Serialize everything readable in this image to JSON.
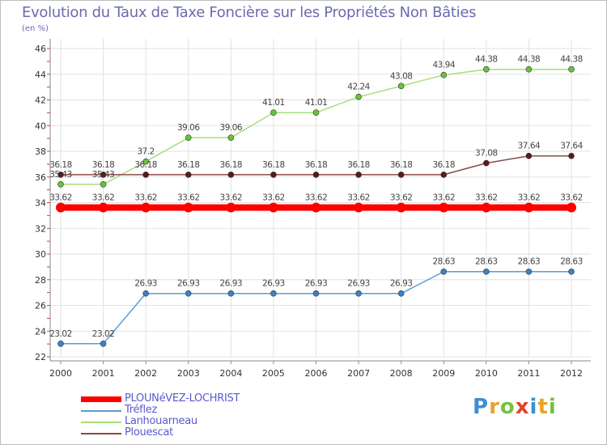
{
  "title": "Evolution du Taux de Taxe Foncière sur les Propriétés Non Bâties",
  "subtitle": "(en %)",
  "brand": {
    "letters": [
      "P",
      "r",
      "o",
      "x",
      "i",
      "t",
      "i"
    ],
    "colors": [
      "#3a8fd6",
      "#e8a32a",
      "#77c043",
      "#e0442e",
      "#3a8fd6",
      "#e8a32a",
      "#77c043"
    ]
  },
  "chart_data": {
    "type": "line",
    "title": "Evolution du Taux de Taxe Foncière sur les Propriétés Non Bâties",
    "ylabel": "(en %)",
    "xlabel": "",
    "x": [
      "2000",
      "2001",
      "2002",
      "2003",
      "2004",
      "2005",
      "2006",
      "2007",
      "2008",
      "2009",
      "2010",
      "2011",
      "2012"
    ],
    "ylim": [
      22,
      46
    ],
    "yticks": [
      22,
      24,
      26,
      28,
      30,
      32,
      34,
      36,
      38,
      40,
      42,
      44,
      46
    ],
    "grid": true,
    "series": [
      {
        "name": "PLOUNéVEZ-LOCHRIST",
        "color": "#ff0000",
        "point_color": "#ff0000",
        "values": [
          33.62,
          33.62,
          33.62,
          33.62,
          33.62,
          33.62,
          33.62,
          33.62,
          33.62,
          33.62,
          33.62,
          33.62,
          33.62
        ],
        "labels": [
          "33.62",
          "33.62",
          "33.62",
          "33.62",
          "33.62",
          "33.62",
          "33.62",
          "33.62",
          "33.62",
          "33.62",
          "33.62",
          "33.62",
          "33.62"
        ]
      },
      {
        "name": "Tréflez",
        "color": "#5b9bd5",
        "point_color": "#3b82c4",
        "values": [
          23.02,
          23.02,
          26.93,
          26.93,
          26.93,
          26.93,
          26.93,
          26.93,
          26.93,
          28.63,
          28.63,
          28.63,
          28.63
        ],
        "labels": [
          "23.02",
          "23.02",
          "26.93",
          "26.93",
          "26.93",
          "26.93",
          "26.93",
          "26.93",
          "26.93",
          "28.63",
          "28.63",
          "28.63",
          "28.63"
        ]
      },
      {
        "name": "Lanhouarneau",
        "color": "#a6e07a",
        "point_color": "#66c43a",
        "values": [
          35.43,
          35.43,
          37.2,
          39.06,
          39.06,
          41.01,
          41.01,
          42.24,
          43.08,
          43.94,
          44.38,
          44.38,
          44.38
        ],
        "labels": [
          "35.43",
          "35.43",
          "37.2",
          "39.06",
          "39.06",
          "41.01",
          "41.01",
          "42.24",
          "43.08",
          "43.94",
          "44.38",
          "44.38",
          "44.38"
        ]
      },
      {
        "name": "Plouescat",
        "color": "#8b4a4a",
        "point_color": "#5a1a1a",
        "values": [
          36.18,
          36.18,
          36.18,
          36.18,
          36.18,
          36.18,
          36.18,
          36.18,
          36.18,
          36.18,
          37.08,
          37.64,
          37.64
        ],
        "labels": [
          "36.18",
          "36.18",
          "36.18",
          "36.18",
          "36.18",
          "36.18",
          "36.18",
          "36.18",
          "36.18",
          "36.18",
          "37.08",
          "37.64",
          "37.64"
        ]
      }
    ]
  }
}
